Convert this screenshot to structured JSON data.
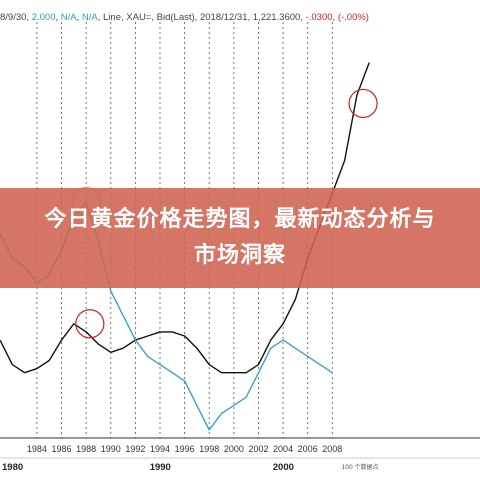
{
  "header": {
    "left_date": "8/9/30",
    "left_value": "2.000",
    "na1": "N/A",
    "na2": "N/A",
    "type": "Line",
    "symbol": "XAU=",
    "field": "Bid(Last)",
    "date": "2018/12/31",
    "value": "1,221.3600",
    "change": "-.0300",
    "pct": "(-.00%)"
  },
  "banner": {
    "title": "今日黄金价格走势图，最新动态分析与市场洞察"
  },
  "footer": {
    "caption": "100 个数据点"
  },
  "colors": {
    "black_series": "#111111",
    "blue_series": "#3aa0d0",
    "banner": "#ce6250",
    "circle_red": "#cc2222",
    "circle_orange": "#e8a070"
  },
  "chart_data": {
    "type": "line",
    "title": "",
    "xlabel": "",
    "ylabel": "",
    "xlim": [
      1981,
      2020
    ],
    "ylim": [
      0,
      100
    ],
    "x_ticks": [
      "1984",
      "1986",
      "1988",
      "1990",
      "1992",
      "1994",
      "1996",
      "1998",
      "2000",
      "2002",
      "2004",
      "2006",
      "2008"
    ],
    "x_tick_values": [
      1984,
      1986,
      1988,
      1990,
      1992,
      1994,
      1996,
      1998,
      2000,
      2002,
      2004,
      2006,
      2008
    ],
    "decades": [
      "1980",
      "1990",
      "2000"
    ],
    "decade_values": [
      1981,
      1993,
      2003
    ],
    "grid": true,
    "series": [
      {
        "values": [
          [
            1981,
            24
          ],
          [
            1982,
            18
          ],
          [
            1983,
            16
          ],
          [
            1984,
            17
          ],
          [
            1985,
            19
          ],
          [
            1986,
            24
          ],
          [
            1987,
            28
          ],
          [
            1988,
            26
          ],
          [
            1989,
            23
          ],
          [
            1990,
            21
          ],
          [
            1991,
            22
          ],
          [
            1992,
            24
          ],
          [
            1993,
            25
          ],
          [
            1994,
            26
          ],
          [
            1995,
            26
          ],
          [
            1996,
            25
          ],
          [
            1997,
            22
          ],
          [
            1998,
            18
          ],
          [
            1999,
            16
          ],
          [
            2000,
            16
          ],
          [
            2001,
            16
          ],
          [
            2002,
            18
          ],
          [
            2003,
            24
          ],
          [
            2004,
            28
          ],
          [
            2005,
            34
          ],
          [
            2006,
            44
          ],
          [
            2007,
            52
          ],
          [
            2008,
            60
          ],
          [
            2009,
            68
          ],
          [
            2010,
            84
          ],
          [
            2011,
            92
          ]
        ]
      },
      {
        "values": [
          [
            1981,
            50
          ],
          [
            1982,
            44
          ],
          [
            1983,
            42
          ],
          [
            1984,
            38
          ],
          [
            1985,
            40
          ],
          [
            1986,
            46
          ],
          [
            1987,
            54
          ],
          [
            1988,
            58
          ],
          [
            1989,
            48
          ],
          [
            1990,
            36
          ],
          [
            1991,
            30
          ],
          [
            1992,
            24
          ],
          [
            1993,
            20
          ],
          [
            1994,
            18
          ],
          [
            1995,
            16
          ],
          [
            1996,
            14
          ],
          [
            1997,
            8
          ],
          [
            1998,
            2
          ],
          [
            1999,
            6
          ],
          [
            2000,
            8
          ],
          [
            2001,
            10
          ],
          [
            2002,
            16
          ],
          [
            2003,
            22
          ],
          [
            2004,
            24
          ],
          [
            2005,
            22
          ],
          [
            2006,
            20
          ],
          [
            2007,
            18
          ],
          [
            2008,
            16
          ]
        ]
      }
    ],
    "annotations": [
      {
        "shape": "circle",
        "x": 1988,
        "y": 58,
        "color": "orange"
      },
      {
        "shape": "circle",
        "x": 1988.3,
        "y": 28,
        "color": "red"
      },
      {
        "shape": "circle",
        "x": 2010.5,
        "y": 82,
        "color": "red"
      }
    ]
  }
}
